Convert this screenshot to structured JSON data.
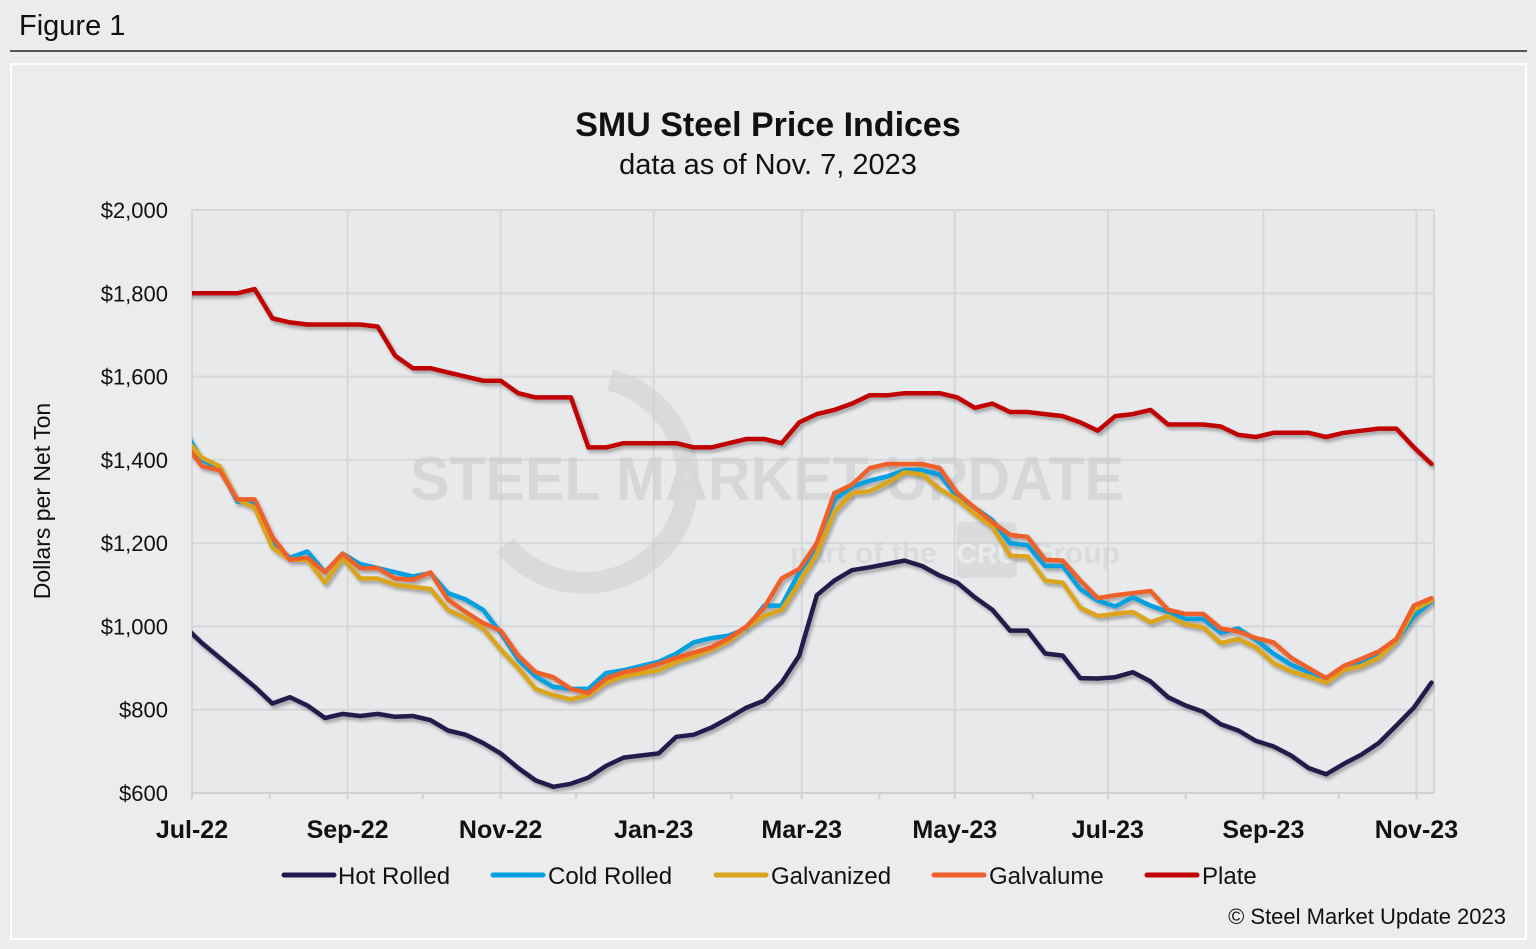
{
  "header": {
    "figure_label": "Figure 1"
  },
  "copyright": "© Steel Market Update 2023",
  "watermark": {
    "brand": "STEEL MARKET UPDATE",
    "tagline_pre": "part of the",
    "tagline_logo": "CRU",
    "tagline_post": "Group"
  },
  "chart_data": {
    "type": "line",
    "title": "SMU Steel Price Indices",
    "subtitle": "data as of Nov. 7, 2023",
    "ylabel": "Dollars per Net Ton",
    "xlabel": "",
    "ylim": [
      600,
      2000
    ],
    "yticks": [
      600,
      800,
      1000,
      1200,
      1400,
      1600,
      1800,
      2000
    ],
    "ytick_labels": [
      "$600",
      "$800",
      "$1,000",
      "$1,200",
      "$1,400",
      "$1,600",
      "$1,800",
      "$2,000"
    ],
    "xlim": [
      "2022-07-01",
      "2023-11-08"
    ],
    "xticks": [
      "2022-07-01",
      "2022-09-01",
      "2022-11-01",
      "2023-01-01",
      "2023-03-01",
      "2023-05-01",
      "2023-07-01",
      "2023-09-01",
      "2023-11-01"
    ],
    "xtick_labels": [
      "Jul-22",
      "Sep-22",
      "Nov-22",
      "Jan-23",
      "Mar-23",
      "May-23",
      "Jul-23",
      "Sep-23",
      "Nov-23"
    ],
    "grid": true,
    "legend_position": "bottom",
    "background_color": "#e8e9eb",
    "x": [
      "2022-06-28",
      "2022-07-05",
      "2022-07-12",
      "2022-07-19",
      "2022-07-26",
      "2022-08-02",
      "2022-08-09",
      "2022-08-16",
      "2022-08-23",
      "2022-08-30",
      "2022-09-06",
      "2022-09-13",
      "2022-09-20",
      "2022-09-27",
      "2022-10-04",
      "2022-10-11",
      "2022-10-18",
      "2022-10-25",
      "2022-11-01",
      "2022-11-08",
      "2022-11-15",
      "2022-11-22",
      "2022-11-29",
      "2022-12-06",
      "2022-12-13",
      "2022-12-20",
      "2022-12-27",
      "2023-01-03",
      "2023-01-10",
      "2023-01-17",
      "2023-01-24",
      "2023-01-31",
      "2023-02-07",
      "2023-02-14",
      "2023-02-21",
      "2023-02-28",
      "2023-03-07",
      "2023-03-14",
      "2023-03-21",
      "2023-03-28",
      "2023-04-04",
      "2023-04-11",
      "2023-04-18",
      "2023-04-25",
      "2023-05-02",
      "2023-05-09",
      "2023-05-16",
      "2023-05-23",
      "2023-05-30",
      "2023-06-06",
      "2023-06-13",
      "2023-06-20",
      "2023-06-27",
      "2023-07-04",
      "2023-07-11",
      "2023-07-18",
      "2023-07-25",
      "2023-08-01",
      "2023-08-08",
      "2023-08-15",
      "2023-08-22",
      "2023-08-29",
      "2023-09-05",
      "2023-09-12",
      "2023-09-19",
      "2023-09-26",
      "2023-10-03",
      "2023-10-10",
      "2023-10-17",
      "2023-10-24",
      "2023-10-31",
      "2023-11-07"
    ],
    "series": [
      {
        "name": "Hot Rolled",
        "color": "#221a4c",
        "values": [
          1000,
          960,
          925,
          890,
          855,
          815,
          830,
          810,
          780,
          790,
          785,
          790,
          783,
          785,
          775,
          750,
          740,
          720,
          695,
          660,
          630,
          615,
          622,
          637,
          665,
          685,
          690,
          695,
          735,
          740,
          757,
          780,
          805,
          822,
          865,
          930,
          1075,
          1110,
          1135,
          1142,
          1150,
          1158,
          1145,
          1122,
          1105,
          1070,
          1040,
          990,
          990,
          935,
          930,
          876,
          875,
          878,
          890,
          868,
          830,
          810,
          795,
          765,
          750,
          725,
          712,
          690,
          660,
          645,
          670,
          692,
          720,
          762,
          805,
          865
        ]
      },
      {
        "name": "Cold Rolled",
        "color": "#00a0e0",
        "values": [
          1470,
          1400,
          1380,
          1300,
          1295,
          1200,
          1165,
          1180,
          1130,
          1175,
          1150,
          1140,
          1130,
          1120,
          1128,
          1080,
          1065,
          1040,
          985,
          920,
          880,
          855,
          850,
          850,
          888,
          895,
          905,
          915,
          935,
          962,
          972,
          978,
          995,
          1050,
          1050,
          1130,
          1190,
          1305,
          1335,
          1350,
          1360,
          1375,
          1375,
          1365,
          1310,
          1285,
          1255,
          1200,
          1195,
          1145,
          1145,
          1090,
          1062,
          1048,
          1070,
          1050,
          1035,
          1018,
          1018,
          985,
          995,
          968,
          935,
          908,
          890,
          870,
          900,
          912,
          928,
          965,
          1025,
          1060
        ]
      },
      {
        "name": "Galvanized",
        "color": "#daa51c",
        "values": [
          1455,
          1405,
          1385,
          1305,
          1285,
          1190,
          1160,
          1160,
          1105,
          1165,
          1115,
          1115,
          1100,
          1095,
          1090,
          1040,
          1020,
          995,
          945,
          900,
          850,
          835,
          825,
          835,
          865,
          880,
          888,
          895,
          915,
          928,
          945,
          965,
          998,
          1025,
          1040,
          1105,
          1175,
          1275,
          1320,
          1325,
          1345,
          1370,
          1365,
          1330,
          1305,
          1270,
          1240,
          1170,
          1168,
          1110,
          1105,
          1045,
          1025,
          1030,
          1035,
          1010,
          1025,
          1005,
          998,
          960,
          970,
          950,
          912,
          892,
          880,
          865,
          895,
          905,
          925,
          965,
          1040,
          1062
        ]
      },
      {
        "name": "Galvalume",
        "color": "#f0602c",
        "values": [
          1440,
          1385,
          1375,
          1305,
          1305,
          1215,
          1160,
          1165,
          1130,
          1175,
          1140,
          1140,
          1115,
          1112,
          1130,
          1065,
          1035,
          1008,
          990,
          930,
          890,
          878,
          850,
          840,
          875,
          890,
          898,
          910,
          925,
          937,
          950,
          972,
          1000,
          1045,
          1115,
          1138,
          1200,
          1320,
          1340,
          1380,
          1390,
          1390,
          1390,
          1380,
          1320,
          1285,
          1250,
          1220,
          1215,
          1160,
          1158,
          1110,
          1068,
          1075,
          1080,
          1085,
          1040,
          1030,
          1030,
          995,
          988,
          972,
          962,
          925,
          900,
          876,
          905,
          922,
          940,
          970,
          1050,
          1068
        ]
      },
      {
        "name": "Plate",
        "color": "#c00000",
        "values": [
          1800,
          1800,
          1800,
          1800,
          1810,
          1740,
          1730,
          1725,
          1725,
          1725,
          1725,
          1720,
          1650,
          1620,
          1620,
          1610,
          1600,
          1590,
          1590,
          1560,
          1550,
          1550,
          1550,
          1430,
          1430,
          1440,
          1440,
          1440,
          1440,
          1430,
          1430,
          1440,
          1450,
          1450,
          1440,
          1490,
          1510,
          1520,
          1535,
          1555,
          1555,
          1560,
          1560,
          1560,
          1550,
          1525,
          1535,
          1515,
          1515,
          1510,
          1505,
          1490,
          1470,
          1505,
          1510,
          1520,
          1485,
          1485,
          1485,
          1480,
          1460,
          1455,
          1465,
          1465,
          1465,
          1455,
          1465,
          1470,
          1475,
          1475,
          1430,
          1390
        ]
      }
    ]
  }
}
